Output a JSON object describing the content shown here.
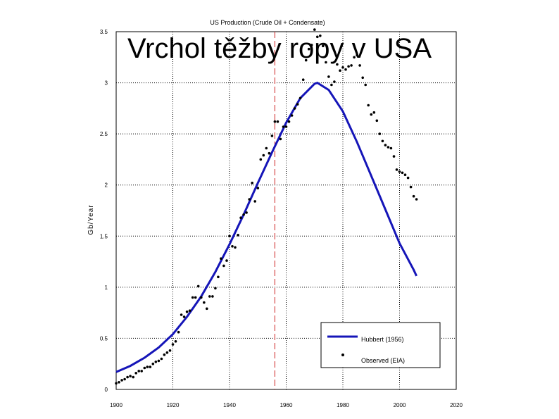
{
  "slide": {
    "title": "Vrchol těžby ropy v USA"
  },
  "colors": {
    "hubbert_line": "#1515b8",
    "observed_points": "#000000",
    "peak_marker": "#cc2222",
    "grid": "#000000",
    "background": "#ffffff"
  },
  "chart_data": {
    "type": "scatter",
    "title": "US Production (Crude Oil + Condensate)",
    "xlabel": "",
    "ylabel": "Gb/Year",
    "xlim": [
      1900,
      2020
    ],
    "ylim": [
      0,
      3.5
    ],
    "grid": true,
    "x_ticks": [
      1900,
      1920,
      1940,
      1960,
      1980,
      2000,
      2020
    ],
    "y_ticks": [
      0,
      0.5,
      1,
      1.5,
      2,
      2.5,
      3,
      3.5
    ],
    "x_tick_labels": [
      "1900",
      "1920",
      "1940",
      "1960",
      "1980",
      "2000",
      "2020"
    ],
    "y_tick_labels": [
      "0",
      "0.5",
      "1",
      "1.5",
      "2",
      "2.5",
      "3",
      "3.5"
    ],
    "legend_position": "bottom-right",
    "peak_year_marker": 1956,
    "series": [
      {
        "name": "Hubbert (1956)",
        "kind": "line",
        "peak_year": 1971,
        "peak_value": 3.0,
        "x": [
          1900,
          1905,
          1910,
          1915,
          1920,
          1925,
          1930,
          1935,
          1940,
          1945,
          1950,
          1955,
          1960,
          1965,
          1970,
          1971,
          1975,
          1980,
          1985,
          1990,
          1995,
          2000,
          2005,
          2006
        ],
        "y": [
          0.17,
          0.23,
          0.31,
          0.41,
          0.54,
          0.71,
          0.91,
          1.15,
          1.42,
          1.71,
          2.02,
          2.32,
          2.61,
          2.85,
          2.99,
          3.0,
          2.93,
          2.72,
          2.42,
          2.09,
          1.76,
          1.43,
          1.17,
          1.11
        ]
      },
      {
        "name": "Observed (EIA)",
        "kind": "scatter",
        "x": [
          1900,
          1901,
          1902,
          1903,
          1904,
          1905,
          1906,
          1907,
          1908,
          1909,
          1910,
          1911,
          1912,
          1913,
          1914,
          1915,
          1916,
          1917,
          1918,
          1919,
          1920,
          1921,
          1922,
          1923,
          1924,
          1925,
          1926,
          1927,
          1928,
          1929,
          1930,
          1931,
          1932,
          1933,
          1934,
          1935,
          1936,
          1937,
          1938,
          1939,
          1940,
          1941,
          1942,
          1943,
          1944,
          1945,
          1946,
          1947,
          1948,
          1949,
          1950,
          1951,
          1952,
          1953,
          1954,
          1955,
          1956,
          1957,
          1958,
          1959,
          1960,
          1961,
          1962,
          1963,
          1964,
          1965,
          1966,
          1967,
          1968,
          1969,
          1970,
          1971,
          1972,
          1973,
          1974,
          1975,
          1976,
          1977,
          1978,
          1979,
          1980,
          1981,
          1982,
          1983,
          1984,
          1985,
          1986,
          1987,
          1988,
          1989,
          1990,
          1991,
          1992,
          1993,
          1994,
          1995,
          1996,
          1997,
          1998,
          1999,
          2000,
          2001,
          2002,
          2003,
          2004,
          2005,
          2006
        ],
        "y": [
          0.06,
          0.07,
          0.09,
          0.1,
          0.12,
          0.13,
          0.12,
          0.16,
          0.18,
          0.18,
          0.21,
          0.22,
          0.22,
          0.25,
          0.27,
          0.28,
          0.3,
          0.34,
          0.36,
          0.38,
          0.44,
          0.47,
          0.56,
          0.73,
          0.71,
          0.76,
          0.77,
          0.9,
          0.9,
          1.01,
          0.9,
          0.85,
          0.79,
          0.91,
          0.91,
          0.99,
          1.1,
          1.28,
          1.21,
          1.26,
          1.5,
          1.4,
          1.39,
          1.51,
          1.68,
          1.71,
          1.73,
          1.86,
          2.02,
          1.84,
          1.97,
          2.25,
          2.29,
          2.36,
          2.31,
          2.48,
          2.62,
          2.62,
          2.45,
          2.57,
          2.57,
          2.62,
          2.68,
          2.75,
          2.79,
          2.85,
          3.03,
          3.22,
          3.33,
          3.37,
          3.52,
          3.45,
          3.46,
          3.36,
          3.2,
          3.06,
          2.98,
          3.01,
          3.18,
          3.12,
          3.15,
          3.13,
          3.16,
          3.17,
          3.25,
          3.27,
          3.17,
          3.05,
          2.98,
          2.78,
          2.69,
          2.71,
          2.63,
          2.5,
          2.43,
          2.39,
          2.37,
          2.36,
          2.28,
          2.15,
          2.13,
          2.12,
          2.1,
          2.07,
          1.98,
          1.89,
          1.86
        ]
      }
    ]
  }
}
